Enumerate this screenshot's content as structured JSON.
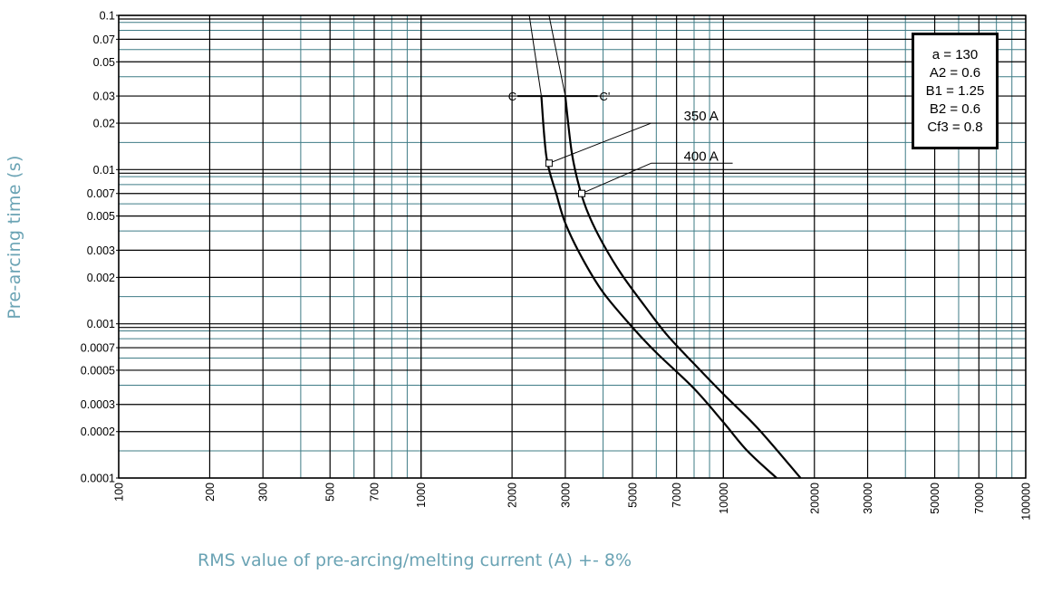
{
  "chart_data": {
    "type": "line",
    "xlabel": "RMS value of pre-arcing/melting current (A) +- 8%",
    "ylabel": "Pre-arcing time (s)",
    "x_scale": "log",
    "y_scale": "log",
    "xlim": [
      100,
      100000
    ],
    "ylim": [
      0.0001,
      0.1
    ],
    "x_ticks": [
      "100",
      "200",
      "300",
      "500",
      "700",
      "1000",
      "2000",
      "3000",
      "5000",
      "7000",
      "10000",
      "20000",
      "30000",
      "50000",
      "70000",
      "100000"
    ],
    "y_ticks": [
      "0.1",
      "0.07",
      "0.05",
      "0.03",
      "0.02",
      "0.01",
      "0.007",
      "0.005",
      "0.003",
      "0.002",
      "0.001",
      "0.0007",
      "0.0005",
      "0.0003",
      "0.0002",
      "0.0001"
    ],
    "grid": true,
    "series": [
      {
        "name": "350 A",
        "x": [
          2500,
          2600,
          2800,
          3000,
          3400,
          4000,
          5000,
          6000,
          8000,
          10000,
          12000,
          15000
        ],
        "y": [
          0.03,
          0.012,
          0.007,
          0.0045,
          0.0027,
          0.0016,
          0.00095,
          0.00065,
          0.00038,
          0.00023,
          0.00015,
          0.0001
        ]
      },
      {
        "name": "400 A",
        "x": [
          3000,
          3150,
          3350,
          3600,
          4000,
          4600,
          5500,
          6500,
          8000,
          10000,
          13000,
          18000
        ],
        "y": [
          0.03,
          0.013,
          0.0075,
          0.005,
          0.0033,
          0.0021,
          0.0013,
          0.00085,
          0.00055,
          0.00035,
          0.00021,
          0.0001
        ]
      }
    ],
    "continuation_lines": [
      {
        "x": [
          2280,
          2500
        ],
        "y": [
          0.1,
          0.03
        ]
      },
      {
        "x": [
          2650,
          3000
        ],
        "y": [
          0.1,
          0.03
        ]
      }
    ],
    "cc_line": {
      "x": [
        2000,
        4000
      ],
      "y": 0.03,
      "left_label": "C",
      "right_label": "C'"
    },
    "callouts": [
      {
        "label": "350 A",
        "marker": {
          "x": 2650,
          "y": 0.011
        },
        "label_at": {
          "x": 7600,
          "y": 0.02
        }
      },
      {
        "label": "400 A",
        "marker": {
          "x": 3400,
          "y": 0.007
        },
        "label_at": {
          "x": 7600,
          "y": 0.011
        }
      }
    ],
    "params": [
      "a = 130",
      "A2 = 0.6",
      "B1 = 1.25",
      "B2 = 0.6",
      "Cf3 = 0.8"
    ]
  },
  "colors": {
    "axis_title": "#6aa3b4",
    "grid_major": "#000000",
    "grid_minor": "#3f7c86",
    "curve": "#000000"
  }
}
